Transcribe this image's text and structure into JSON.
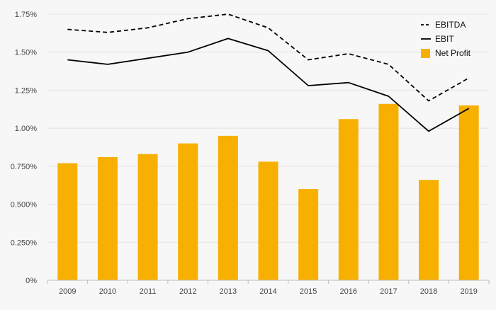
{
  "chart_data": {
    "type": "bar",
    "title": "",
    "xlabel": "",
    "ylabel": "",
    "categories": [
      "2009",
      "2010",
      "2011",
      "2012",
      "2013",
      "2014",
      "2015",
      "2016",
      "2017",
      "2018",
      "2019"
    ],
    "ylim": [
      0,
      1.75
    ],
    "y_ticks": [
      {
        "value": 0,
        "label": "0%"
      },
      {
        "value": 0.25,
        "label": "0.250%"
      },
      {
        "value": 0.5,
        "label": "0.500%"
      },
      {
        "value": 0.75,
        "label": "0.750%"
      },
      {
        "value": 1.0,
        "label": "1.00%"
      },
      {
        "value": 1.25,
        "label": "1.25%"
      },
      {
        "value": 1.5,
        "label": "1.50%"
      },
      {
        "value": 1.75,
        "label": "1.75%"
      }
    ],
    "grid": true,
    "legend_position": "top-right",
    "series": [
      {
        "name": "EBITDA",
        "kind": "line",
        "style": "dashed",
        "color": "#000000",
        "values": [
          1.65,
          1.63,
          1.66,
          1.72,
          1.75,
          1.66,
          1.45,
          1.49,
          1.42,
          1.18,
          1.33
        ]
      },
      {
        "name": "EBIT",
        "kind": "line",
        "style": "solid",
        "color": "#000000",
        "values": [
          1.45,
          1.42,
          1.46,
          1.5,
          1.59,
          1.51,
          1.28,
          1.3,
          1.21,
          0.98,
          1.13
        ]
      },
      {
        "name": "Net Profit",
        "kind": "bar",
        "color": "#f7b000",
        "values": [
          0.77,
          0.81,
          0.83,
          0.9,
          0.95,
          0.78,
          0.6,
          1.06,
          1.16,
          0.66,
          1.15
        ]
      }
    ]
  }
}
